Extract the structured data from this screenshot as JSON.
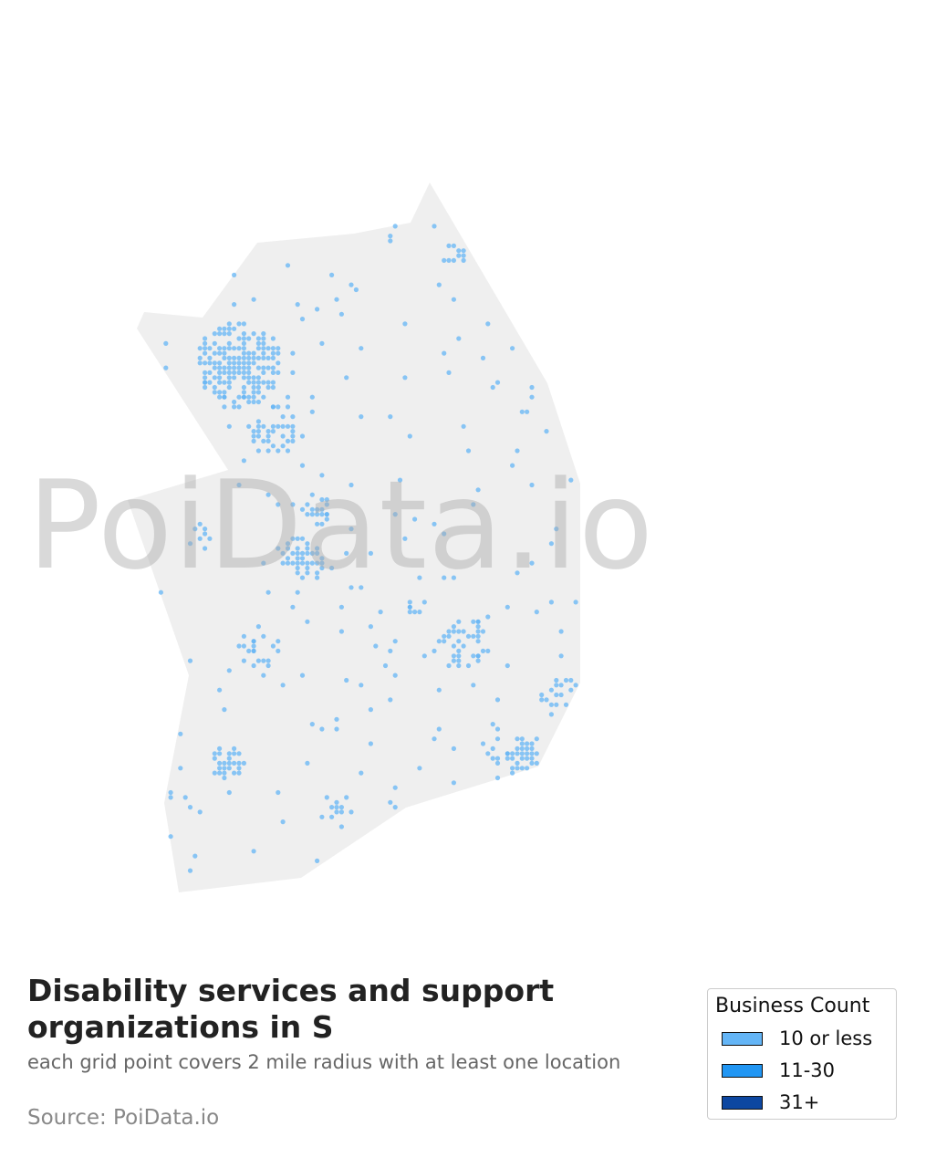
{
  "map": {
    "region_color": "#efefef",
    "dot_color": "#64b5f6"
  },
  "watermark": "PoiData.io",
  "title": "Disability services and support organizations in S",
  "subtitle": "each grid point covers 2 mile radius with at least one location",
  "source": "Source: PoiData.io",
  "legend": {
    "title": "Business Count",
    "items": [
      {
        "label": "10 or less",
        "color": "#64b5f6"
      },
      {
        "label": "11-30",
        "color": "#2196f3"
      },
      {
        "label": "31+",
        "color": "#0d47a1"
      }
    ]
  }
}
